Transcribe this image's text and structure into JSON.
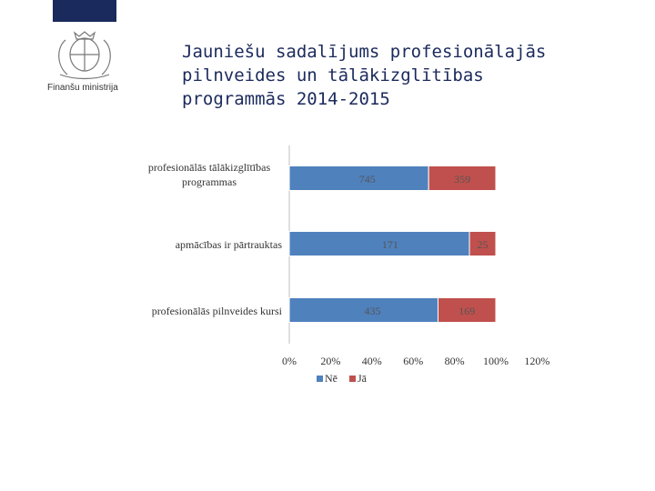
{
  "header": {
    "ministry_label": "Finanšu ministrija",
    "title_lines": [
      "Jauniešu sadalījums profesionālajās",
      "pilnveides un tālākizglītības",
      "programmās 2014-2015"
    ]
  },
  "colors": {
    "ne": "#4f81bd",
    "ja": "#c0504d",
    "axis": "#bfbfbf",
    "text": "#333333",
    "navy": "#1b2a5c"
  },
  "chart_data": {
    "type": "bar",
    "orientation": "horizontal",
    "stacked": "percent",
    "categories": [
      "profesionālās tālākizglītības programmas",
      "apmācības ir pārtrauktas",
      "profesionālās pilnveides kursi"
    ],
    "category_lines": [
      [
        "profesionālās tālākizglītības",
        "programmas"
      ],
      [
        "apmācības ir pārtrauktas"
      ],
      [
        "profesionālās pilnveides kursi"
      ]
    ],
    "series": [
      {
        "name": "Nē",
        "values": [
          745,
          171,
          435
        ]
      },
      {
        "name": "Jā",
        "values": [
          359,
          25,
          169
        ]
      }
    ],
    "xticks": [
      "0%",
      "20%",
      "40%",
      "60%",
      "80%",
      "100%",
      "120%"
    ],
    "xlim": [
      0,
      1.2
    ],
    "legend_position": "bottom",
    "title": "",
    "xlabel": "",
    "ylabel": ""
  }
}
